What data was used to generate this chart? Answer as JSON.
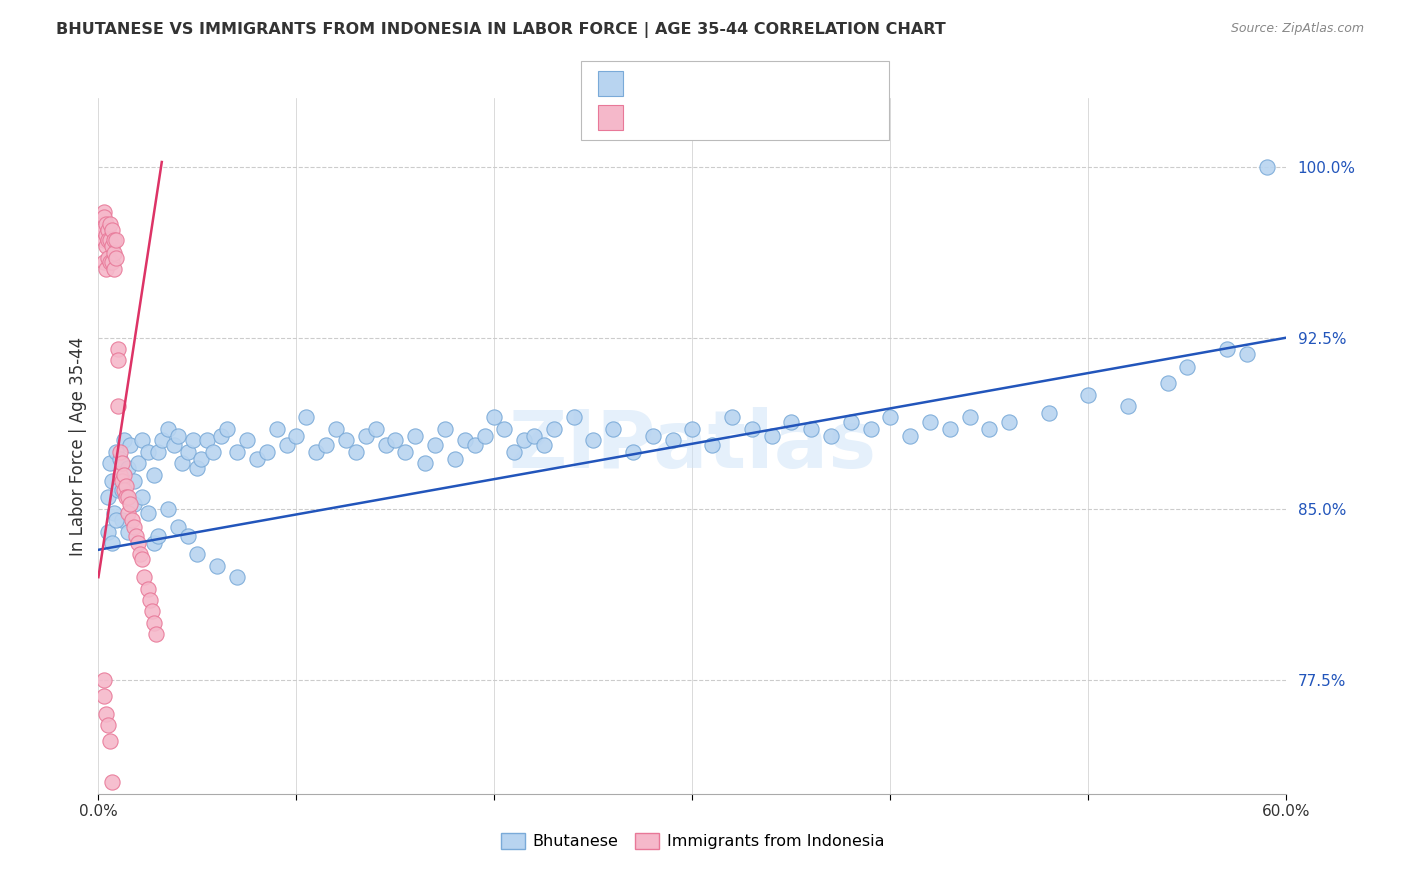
{
  "title": "BHUTANESE VS IMMIGRANTS FROM INDONESIA IN LABOR FORCE | AGE 35-44 CORRELATION CHART",
  "source": "Source: ZipAtlas.com",
  "ylabel": "In Labor Force | Age 35-44",
  "ytick_values": [
    0.775,
    0.85,
    0.925,
    1.0
  ],
  "xmin": 0.0,
  "xmax": 0.6,
  "ymin": 0.725,
  "ymax": 1.03,
  "blue_color": "#b8d4f0",
  "pink_color": "#f5b8ca",
  "blue_edge": "#7aaad8",
  "pink_edge": "#e87898",
  "line_blue": "#2255bb",
  "line_pink": "#dd3366",
  "legend_text_color": "#2255bb",
  "watermark": "ZIPatlas",
  "blue_line_y0": 0.832,
  "blue_line_y1": 0.925,
  "pink_line_x0": 0.0,
  "pink_line_x1": 0.032,
  "pink_line_y0": 0.82,
  "pink_line_y1": 1.002,
  "bhutanese_x": [
    0.005,
    0.006,
    0.007,
    0.008,
    0.009,
    0.01,
    0.011,
    0.012,
    0.013,
    0.015,
    0.016,
    0.018,
    0.02,
    0.022,
    0.025,
    0.028,
    0.03,
    0.032,
    0.035,
    0.038,
    0.04,
    0.042,
    0.045,
    0.048,
    0.05,
    0.052,
    0.055,
    0.058,
    0.062,
    0.065,
    0.07,
    0.075,
    0.08,
    0.085,
    0.09,
    0.095,
    0.1,
    0.105,
    0.11,
    0.115,
    0.12,
    0.125,
    0.13,
    0.135,
    0.14,
    0.145,
    0.15,
    0.155,
    0.16,
    0.165,
    0.17,
    0.175,
    0.18,
    0.185,
    0.19,
    0.195,
    0.2,
    0.205,
    0.21,
    0.215,
    0.22,
    0.225,
    0.23,
    0.24,
    0.25,
    0.26,
    0.27,
    0.28,
    0.29,
    0.3,
    0.31,
    0.32,
    0.33,
    0.34,
    0.35,
    0.36,
    0.37,
    0.38,
    0.39,
    0.4,
    0.41,
    0.42,
    0.43,
    0.44,
    0.45,
    0.46,
    0.48,
    0.5,
    0.52,
    0.54,
    0.55,
    0.57,
    0.58,
    0.59,
    0.005,
    0.007,
    0.009,
    0.012,
    0.015,
    0.018,
    0.022,
    0.025,
    0.028,
    0.03,
    0.035,
    0.04,
    0.045,
    0.05,
    0.06,
    0.07
  ],
  "bhutanese_y": [
    0.855,
    0.87,
    0.862,
    0.848,
    0.875,
    0.858,
    0.872,
    0.845,
    0.88,
    0.868,
    0.878,
    0.862,
    0.87,
    0.88,
    0.875,
    0.865,
    0.875,
    0.88,
    0.885,
    0.878,
    0.882,
    0.87,
    0.875,
    0.88,
    0.868,
    0.872,
    0.88,
    0.875,
    0.882,
    0.885,
    0.875,
    0.88,
    0.872,
    0.875,
    0.885,
    0.878,
    0.882,
    0.89,
    0.875,
    0.878,
    0.885,
    0.88,
    0.875,
    0.882,
    0.885,
    0.878,
    0.88,
    0.875,
    0.882,
    0.87,
    0.878,
    0.885,
    0.872,
    0.88,
    0.878,
    0.882,
    0.89,
    0.885,
    0.875,
    0.88,
    0.882,
    0.878,
    0.885,
    0.89,
    0.88,
    0.885,
    0.875,
    0.882,
    0.88,
    0.885,
    0.878,
    0.89,
    0.885,
    0.882,
    0.888,
    0.885,
    0.882,
    0.888,
    0.885,
    0.89,
    0.882,
    0.888,
    0.885,
    0.89,
    0.885,
    0.888,
    0.892,
    0.9,
    0.895,
    0.905,
    0.912,
    0.92,
    0.918,
    1.0,
    0.84,
    0.835,
    0.845,
    0.858,
    0.84,
    0.852,
    0.855,
    0.848,
    0.835,
    0.838,
    0.85,
    0.842,
    0.838,
    0.83,
    0.825,
    0.82
  ],
  "indonesia_x": [
    0.002,
    0.002,
    0.003,
    0.003,
    0.003,
    0.003,
    0.004,
    0.004,
    0.004,
    0.004,
    0.005,
    0.005,
    0.005,
    0.006,
    0.006,
    0.006,
    0.007,
    0.007,
    0.007,
    0.008,
    0.008,
    0.008,
    0.009,
    0.009,
    0.01,
    0.01,
    0.01,
    0.011,
    0.011,
    0.012,
    0.012,
    0.013,
    0.013,
    0.014,
    0.014,
    0.015,
    0.015,
    0.016,
    0.017,
    0.018,
    0.019,
    0.02,
    0.021,
    0.022,
    0.023,
    0.025,
    0.026,
    0.027,
    0.028,
    0.029,
    0.003,
    0.003,
    0.004,
    0.005,
    0.006,
    0.007
  ],
  "indonesia_y": [
    0.975,
    0.972,
    0.98,
    0.978,
    0.968,
    0.958,
    0.975,
    0.97,
    0.965,
    0.955,
    0.972,
    0.968,
    0.96,
    0.975,
    0.968,
    0.958,
    0.972,
    0.965,
    0.958,
    0.968,
    0.962,
    0.955,
    0.968,
    0.96,
    0.92,
    0.915,
    0.895,
    0.875,
    0.865,
    0.87,
    0.862,
    0.865,
    0.858,
    0.86,
    0.855,
    0.855,
    0.848,
    0.852,
    0.845,
    0.842,
    0.838,
    0.835,
    0.83,
    0.828,
    0.82,
    0.815,
    0.81,
    0.805,
    0.8,
    0.795,
    0.775,
    0.768,
    0.76,
    0.755,
    0.748,
    0.73
  ]
}
